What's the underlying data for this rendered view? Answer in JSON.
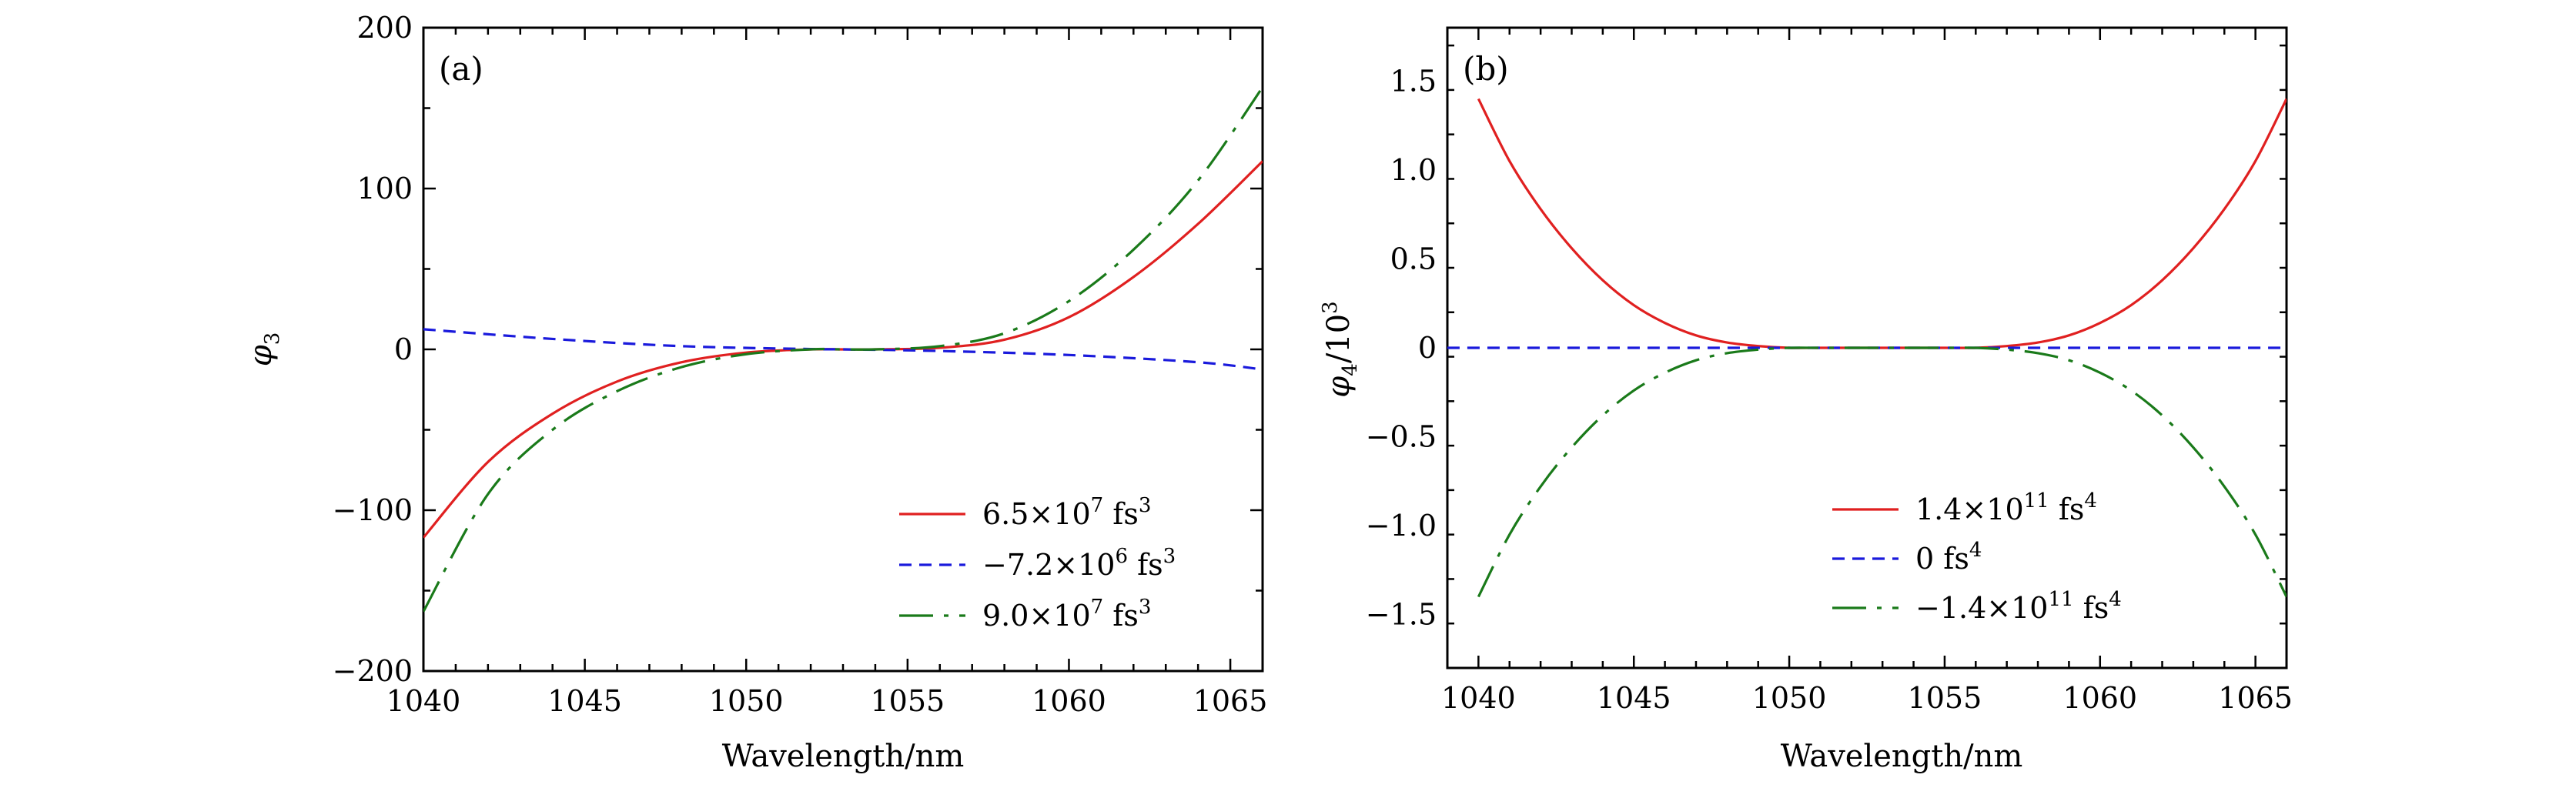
{
  "chart_data": [
    {
      "type": "line",
      "panel_label": "(a)",
      "xlabel": "Wavelength/nm",
      "ylabel": "φ3",
      "xlim": [
        1040,
        1066
      ],
      "ylim": [
        -200,
        200
      ],
      "xticks": [
        1040,
        1045,
        1050,
        1055,
        1060,
        1065
      ],
      "yticks": [
        -200,
        -100,
        0,
        100,
        200
      ],
      "ytick_labels": [
        "−200",
        "−100",
        "0",
        "100",
        "200"
      ],
      "legend_position": "bottom-right",
      "series": [
        {
          "name": "6.5×10⁷ fs³",
          "legend": {
            "coef": "6.5",
            "exp": "7",
            "unit": "fs",
            "power": "3"
          },
          "color": "#e02020",
          "style": "solid",
          "x": [
            1040,
            1042,
            1044,
            1046,
            1048,
            1050,
            1052,
            1053,
            1054,
            1056,
            1058,
            1060,
            1062,
            1064,
            1066
          ],
          "y": [
            -117,
            -70,
            -40,
            -20,
            -8,
            -2,
            0,
            0,
            0,
            1,
            6,
            20,
            45,
            78,
            117
          ]
        },
        {
          "name": "−7.2×10⁶ fs³",
          "legend": {
            "coef": "−7.2",
            "exp": "6",
            "unit": "fs",
            "power": "3"
          },
          "color": "#1a1adc",
          "style": "dashed",
          "x": [
            1040,
            1044,
            1048,
            1052,
            1053,
            1056,
            1060,
            1064,
            1066
          ],
          "y": [
            12.5,
            6.5,
            2,
            0.2,
            0,
            -1,
            -3.5,
            -8,
            -12.5
          ]
        },
        {
          "name": "9.0×10⁷ fs³",
          "legend": {
            "coef": "9.0",
            "exp": "7",
            "unit": "fs",
            "power": "3"
          },
          "color": "#1a7a1a",
          "style": "dashdot",
          "x": [
            1040,
            1042,
            1044,
            1046,
            1048,
            1050,
            1052,
            1053,
            1054,
            1056,
            1058,
            1060,
            1062,
            1064,
            1066
          ],
          "y": [
            -163,
            -90,
            -50,
            -26,
            -11,
            -3,
            0,
            0,
            0,
            2,
            10,
            30,
            62,
            105,
            163
          ]
        }
      ]
    },
    {
      "type": "line",
      "panel_label": "(b)",
      "xlabel": "Wavelength/nm",
      "ylabel": "φ4/10³",
      "xlim": [
        1039,
        1066
      ],
      "ylim": [
        -1.8,
        1.8
      ],
      "xticks": [
        1040,
        1045,
        1050,
        1055,
        1060,
        1065
      ],
      "yticks": [
        -1.5,
        -1.0,
        -0.5,
        0,
        0.5,
        1.0,
        1.5
      ],
      "ytick_labels": [
        "−1.5",
        "−1.0",
        "−0.5",
        "0",
        "0.5",
        "1.0",
        "1.5"
      ],
      "legend_position": "bottom-center",
      "series": [
        {
          "name": "1.4×10¹¹ fs⁴",
          "legend": {
            "coef": "1.4",
            "exp": "11",
            "unit": "fs",
            "power": "4"
          },
          "color": "#e02020",
          "style": "solid",
          "x": [
            1040,
            1041,
            1042,
            1043,
            1044,
            1045,
            1046,
            1047,
            1048,
            1049,
            1050,
            1051,
            1052,
            1053,
            1054,
            1055,
            1056,
            1057,
            1058,
            1059,
            1060,
            1061,
            1062,
            1063,
            1064,
            1065,
            1066
          ],
          "y": [
            1.4,
            1.05,
            0.78,
            0.56,
            0.38,
            0.24,
            0.14,
            0.07,
            0.03,
            0.01,
            0.0,
            0.0,
            0.0,
            0.0,
            0.0,
            0.0,
            0.0,
            0.01,
            0.03,
            0.07,
            0.14,
            0.24,
            0.38,
            0.56,
            0.78,
            1.05,
            1.4
          ]
        },
        {
          "name": "0 fs⁴",
          "legend": {
            "coef": "0",
            "exp": "",
            "unit": "fs",
            "power": "4"
          },
          "color": "#1a1adc",
          "style": "dashed",
          "x": [
            1039,
            1066
          ],
          "y": [
            0,
            0
          ]
        },
        {
          "name": "−1.4×10¹¹ fs⁴",
          "legend": {
            "coef": "−1.4",
            "exp": "11",
            "unit": "fs",
            "power": "4"
          },
          "color": "#1a7a1a",
          "style": "dashdot",
          "x": [
            1040,
            1041,
            1042,
            1043,
            1044,
            1045,
            1046,
            1047,
            1048,
            1049,
            1050,
            1051,
            1052,
            1053,
            1054,
            1055,
            1056,
            1057,
            1058,
            1059,
            1060,
            1061,
            1062,
            1063,
            1064,
            1065,
            1066
          ],
          "y": [
            -1.4,
            -1.05,
            -0.78,
            -0.56,
            -0.38,
            -0.24,
            -0.14,
            -0.07,
            -0.03,
            -0.01,
            0.0,
            0.0,
            0.0,
            0.0,
            0.0,
            0.0,
            0.0,
            -0.01,
            -0.03,
            -0.07,
            -0.14,
            -0.24,
            -0.38,
            -0.56,
            -0.78,
            -1.05,
            -1.4
          ]
        }
      ]
    }
  ]
}
